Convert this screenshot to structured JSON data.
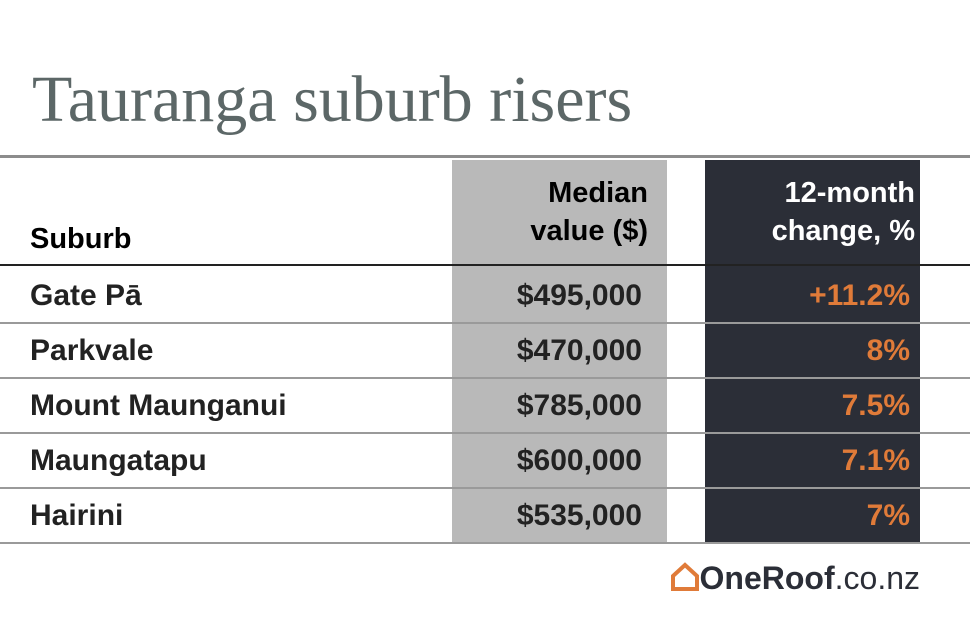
{
  "title": "Tauranga suburb risers",
  "table": {
    "headers": [
      "Suburb",
      "Median value ($)",
      "12-month change, %"
    ],
    "rows": [
      [
        "Gate Pā",
        "$495,000",
        "+11.2%"
      ],
      [
        "Parkvale",
        "$470,000",
        "8%"
      ],
      [
        "Mount Maunganui",
        "$785,000",
        "7.5%"
      ],
      [
        "Maungatapu",
        "$600,000",
        "7.1%"
      ],
      [
        "Hairini",
        "$535,000",
        "7%"
      ]
    ]
  },
  "logo": {
    "brand": "OneRoof",
    "domain": ".co.nz"
  }
}
